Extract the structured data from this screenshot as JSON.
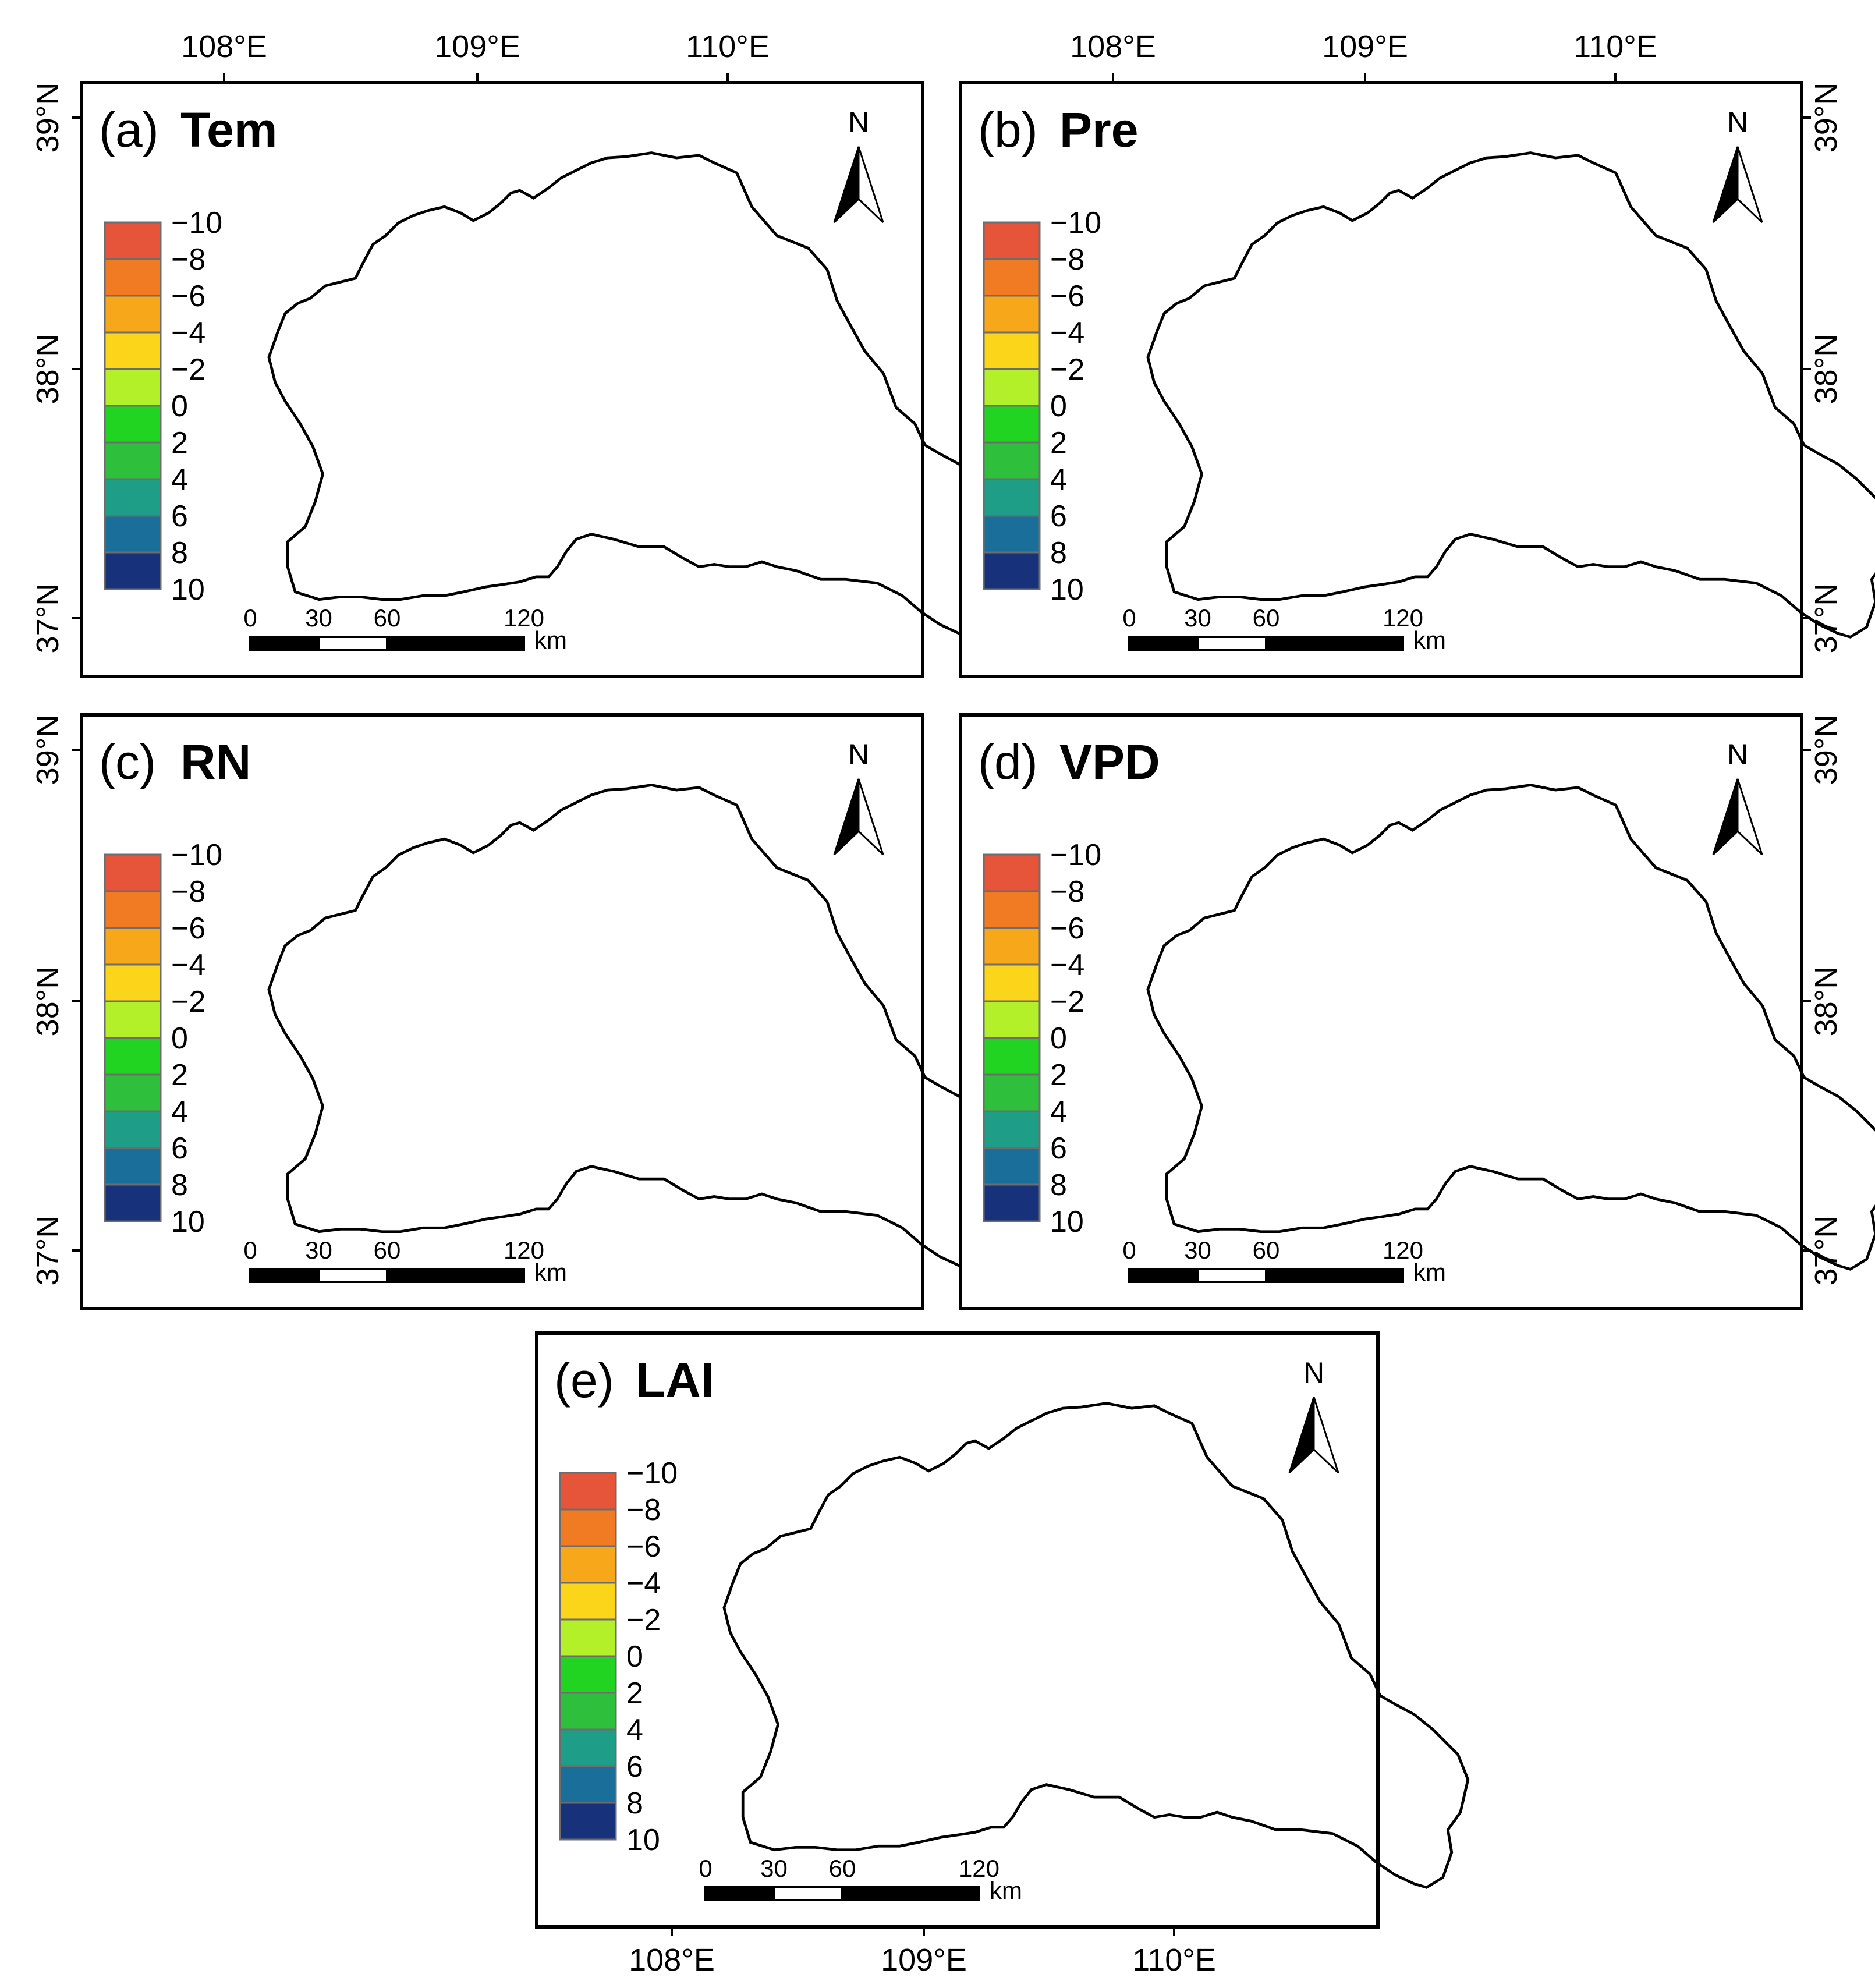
{
  "figure": {
    "panels": [
      {
        "letter": "(a)",
        "variable": "Tem",
        "pattern": "tem"
      },
      {
        "letter": "(b)",
        "variable": "Pre",
        "pattern": "pre"
      },
      {
        "letter": "(c)",
        "variable": "RN",
        "pattern": "rn"
      },
      {
        "letter": "(d)",
        "variable": "VPD",
        "pattern": "vpd"
      },
      {
        "letter": "(e)",
        "variable": "LAI",
        "pattern": "lai"
      }
    ],
    "legend": {
      "labels": [
        "−10",
        "−8",
        "−6",
        "−4",
        "−2",
        "0",
        "2",
        "4",
        "6",
        "8",
        "10"
      ],
      "colors": [
        "#e6553a",
        "#f07b22",
        "#f7a81a",
        "#fbd51a",
        "#b3f02a",
        "#22d422",
        "#2ec03c",
        "#1e9e86",
        "#1a6e9a",
        "#17327a"
      ]
    },
    "scalebar": {
      "ticks": [
        "0",
        "30",
        "60",
        "120"
      ],
      "unit": "km"
    },
    "north": "N",
    "lon_labels": [
      "108°E",
      "109°E",
      "110°E"
    ],
    "lat_labels": [
      "39°N",
      "38°N",
      "37°N"
    ]
  }
}
